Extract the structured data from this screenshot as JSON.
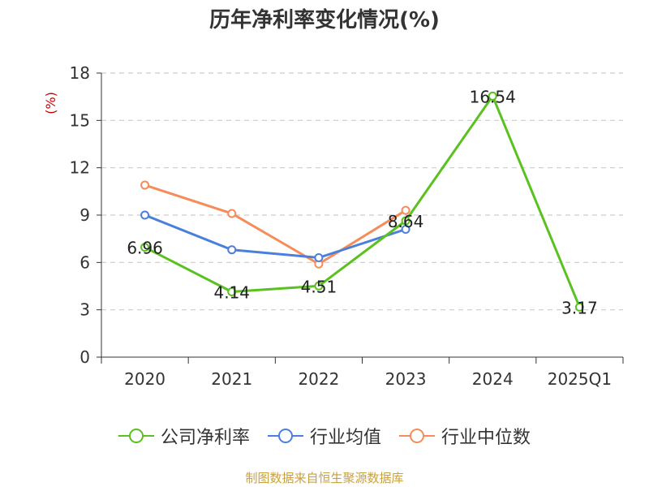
{
  "chart_data": {
    "type": "line",
    "title": "历年净利率变化情况(%)",
    "ylabel": "(%)",
    "ylim": [
      0,
      18
    ],
    "yticks": [
      0,
      3,
      6,
      9,
      12,
      15,
      18
    ],
    "grid": true,
    "legend_position": "bottom",
    "categories": [
      "2020",
      "2021",
      "2022",
      "2023",
      "2024",
      "2025Q1"
    ],
    "series": [
      {
        "name": "公司净利率",
        "color": "#5ac11f",
        "values": [
          6.96,
          4.14,
          4.51,
          8.64,
          16.54,
          3.17
        ],
        "labels": [
          "6.96",
          "4.14",
          "4.51",
          "8.64",
          "16.54",
          "3.17"
        ]
      },
      {
        "name": "行业均值",
        "color": "#4a7fdc",
        "values": [
          9.0,
          6.8,
          6.3,
          8.1,
          null,
          null
        ]
      },
      {
        "name": "行业中位数",
        "color": "#f58d5a",
        "values": [
          10.9,
          9.1,
          5.9,
          9.3,
          null,
          null
        ]
      }
    ]
  },
  "colors": {
    "ylabel": "#cc0000",
    "source": "#c8a040",
    "axis": "#333333",
    "grid": "#cccccc"
  },
  "source_text": "制图数据来自恒生聚源数据库"
}
